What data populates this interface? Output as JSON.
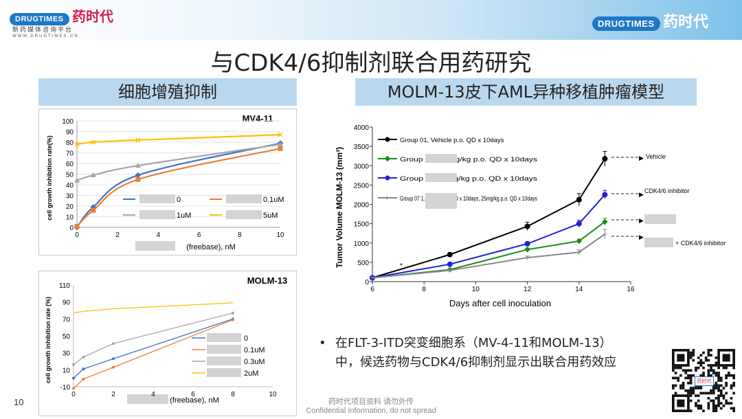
{
  "header": {
    "logo_text": "DRUGTIMES",
    "logo_cn": "药时代",
    "tagline": "新药媒体咨询平台",
    "url": "WWW.DRUGTIMES.CN"
  },
  "title": "与CDK4/6抑制剂联合用药研究",
  "left_section_title": "细胞增殖抑制",
  "right_section_title": "MOLM-13皮下AML异种移植肿瘤模型",
  "bullet": {
    "line1": "在FLT-3-ITD突变细胞系（MV-4-11和MOLM-13）",
    "line2": "中，候选药物与CDK4/6抑制剂显示出联合用药效应"
  },
  "page_number": "10",
  "footer": {
    "line1": "药时代项目资料 请勿外传",
    "line2": "Confidential Information, do not spread"
  },
  "qr_label": "药时代",
  "chart_data": [
    {
      "type": "line",
      "title": "MV4-11",
      "xlabel": "(freebase), nM",
      "ylabel": "cell growth inhibition rate(%)",
      "xlim": [
        0,
        10
      ],
      "ylim": [
        0,
        100
      ],
      "xticks": [
        0,
        2,
        4,
        6,
        8,
        10
      ],
      "yticks": [
        0,
        10,
        20,
        30,
        40,
        50,
        60,
        70,
        80,
        90,
        100
      ],
      "x": [
        0,
        0.8,
        3,
        10
      ],
      "series": [
        {
          "name": "0",
          "color": "#4472c4",
          "marker": "diamond",
          "values": [
            0,
            19,
            49,
            79
          ]
        },
        {
          "name": "0.1uM",
          "color": "#ed7d31",
          "marker": "square",
          "values": [
            1,
            16,
            45,
            74
          ]
        },
        {
          "name": "1uM",
          "color": "#a5a5a5",
          "marker": "triangle",
          "values": [
            44,
            49,
            58,
            78
          ]
        },
        {
          "name": "5uM",
          "color": "#ffc000",
          "marker": "x",
          "values": [
            78,
            80,
            82,
            87
          ]
        }
      ]
    },
    {
      "type": "line",
      "title": "MOLM-13",
      "xlabel": "(freebase), nM",
      "ylabel": "cell growth inhibition rate (%)",
      "xlim": [
        0,
        10
      ],
      "ylim": [
        -10,
        110
      ],
      "xticks": [
        0,
        2,
        4,
        6,
        8,
        10
      ],
      "yticks": [
        -10,
        10,
        30,
        50,
        70,
        90,
        110
      ],
      "x": [
        0,
        0.5,
        2,
        8
      ],
      "series": [
        {
          "name": "0",
          "color": "#4472c4",
          "values": [
            0,
            11,
            23,
            70
          ]
        },
        {
          "name": "0.1uM",
          "color": "#ed7d31",
          "values": [
            -12,
            -1,
            13,
            69
          ]
        },
        {
          "name": "0.3uM",
          "color": "#a5a5a5",
          "values": [
            16,
            25,
            41,
            77
          ]
        },
        {
          "name": "2uM",
          "color": "#ffc000",
          "values": [
            77,
            79,
            82,
            89
          ]
        }
      ]
    },
    {
      "type": "line",
      "xlabel": "Days after cell inoculation",
      "ylabel": "Tumor Volume MOLM-13 (mm³)",
      "xlim": [
        6,
        16
      ],
      "ylim": [
        0,
        4000
      ],
      "xticks": [
        6,
        8,
        10,
        12,
        14,
        16
      ],
      "yticks": [
        0,
        500,
        1000,
        1500,
        2000,
        2500,
        3000,
        3500,
        4000
      ],
      "x": [
        6,
        9,
        12,
        14,
        15
      ],
      "series": [
        {
          "name": "Group 01, Vehicle p.o. QD x 10days",
          "color": "#000000",
          "values": [
            100,
            700,
            1430,
            2120,
            3180
          ],
          "errors": [
            0,
            30,
            110,
            160,
            190
          ],
          "annotation": "Vehicle"
        },
        {
          "name": "Group 03 1.5mg/kg p.o. QD x 10days",
          "color": "#1a8a1a",
          "values": [
            100,
            310,
            830,
            1050,
            1550
          ],
          "errors": [
            0,
            20,
            40,
            50,
            90
          ],
          "annotation": ""
        },
        {
          "name": "Group 05 25mg/kg p.o. QD x 10days",
          "color": "#2020d8",
          "values": [
            100,
            450,
            980,
            1500,
            2250
          ],
          "errors": [
            0,
            25,
            50,
            90,
            110
          ],
          "annotation": "CDK4/6 inhibitor"
        },
        {
          "name": "Group 07 1.5mg/kg p.o. QD x 10days, 25mg/kg p.o. QD x 10days",
          "color": "#888888",
          "values": [
            100,
            290,
            620,
            760,
            1230
          ],
          "errors": [
            0,
            20,
            40,
            60,
            120
          ],
          "annotation": "+ CDK4/6 inhibitor"
        }
      ],
      "marker_note": "*"
    }
  ]
}
